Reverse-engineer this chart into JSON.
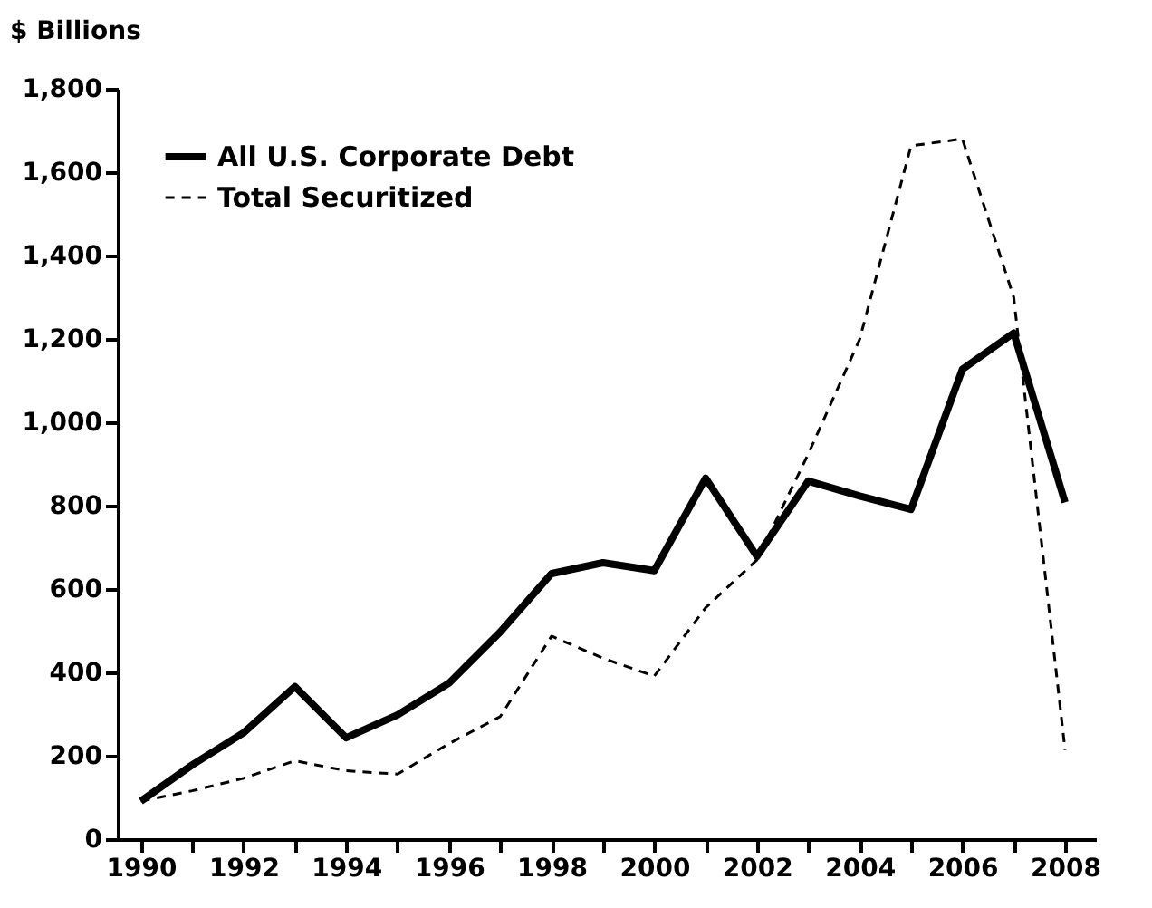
{
  "chart_data": {
    "type": "line",
    "ylabel": "$ Billions",
    "x": [
      1990,
      1991,
      1992,
      1993,
      1994,
      1995,
      1996,
      1997,
      1998,
      1999,
      2000,
      2001,
      2002,
      2003,
      2004,
      2005,
      2006,
      2007,
      2008
    ],
    "series": [
      {
        "name": "All U.S. Corporate Debt",
        "color": "#000000",
        "line_style": "solid",
        "values": [
          91,
          178,
          255,
          366,
          243,
          298,
          374,
          497,
          637,
          663,
          644,
          866,
          678,
          859,
          823,
          791,
          1127,
          1214,
          808
        ]
      },
      {
        "name": "Total Securitized",
        "color": "#000000",
        "line_style": "dashed",
        "values": [
          91,
          116,
          146,
          188,
          164,
          156,
          229,
          294,
          487,
          434,
          391,
          555,
          670,
          924,
          1199,
          1663,
          1680,
          1300,
          214
        ]
      }
    ],
    "xlim": [
      1989.55,
      2008.6
    ],
    "xticks": [
      1990,
      {
        "value": 1991,
        "label": null
      },
      1992,
      {
        "value": 1993,
        "label": null
      },
      1994,
      {
        "value": 1995,
        "label": null
      },
      1996,
      {
        "value": 1997,
        "label": null
      },
      1998,
      {
        "value": 1999,
        "label": null
      },
      2000,
      {
        "value": 2001,
        "label": null
      },
      2002,
      {
        "value": 2003,
        "label": null
      },
      2004,
      {
        "value": 2005,
        "label": null
      },
      2006,
      {
        "value": 2007,
        "label": null
      },
      2008
    ],
    "ylim": [
      0,
      1800
    ],
    "yticks": [
      {
        "value": 0,
        "label": "0"
      },
      {
        "value": 200,
        "label": "200"
      },
      {
        "value": 400,
        "label": "400"
      },
      {
        "value": 600,
        "label": "600"
      },
      {
        "value": 800,
        "label": "800"
      },
      {
        "value": 1000,
        "label": "1,000"
      },
      {
        "value": 1200,
        "label": "1,200"
      },
      {
        "value": 1400,
        "label": "1,400"
      },
      {
        "value": 1600,
        "label": "1,600"
      },
      {
        "value": 1800,
        "label": "1,800"
      }
    ],
    "grid": false,
    "legend": "top left",
    "marker": "none"
  }
}
